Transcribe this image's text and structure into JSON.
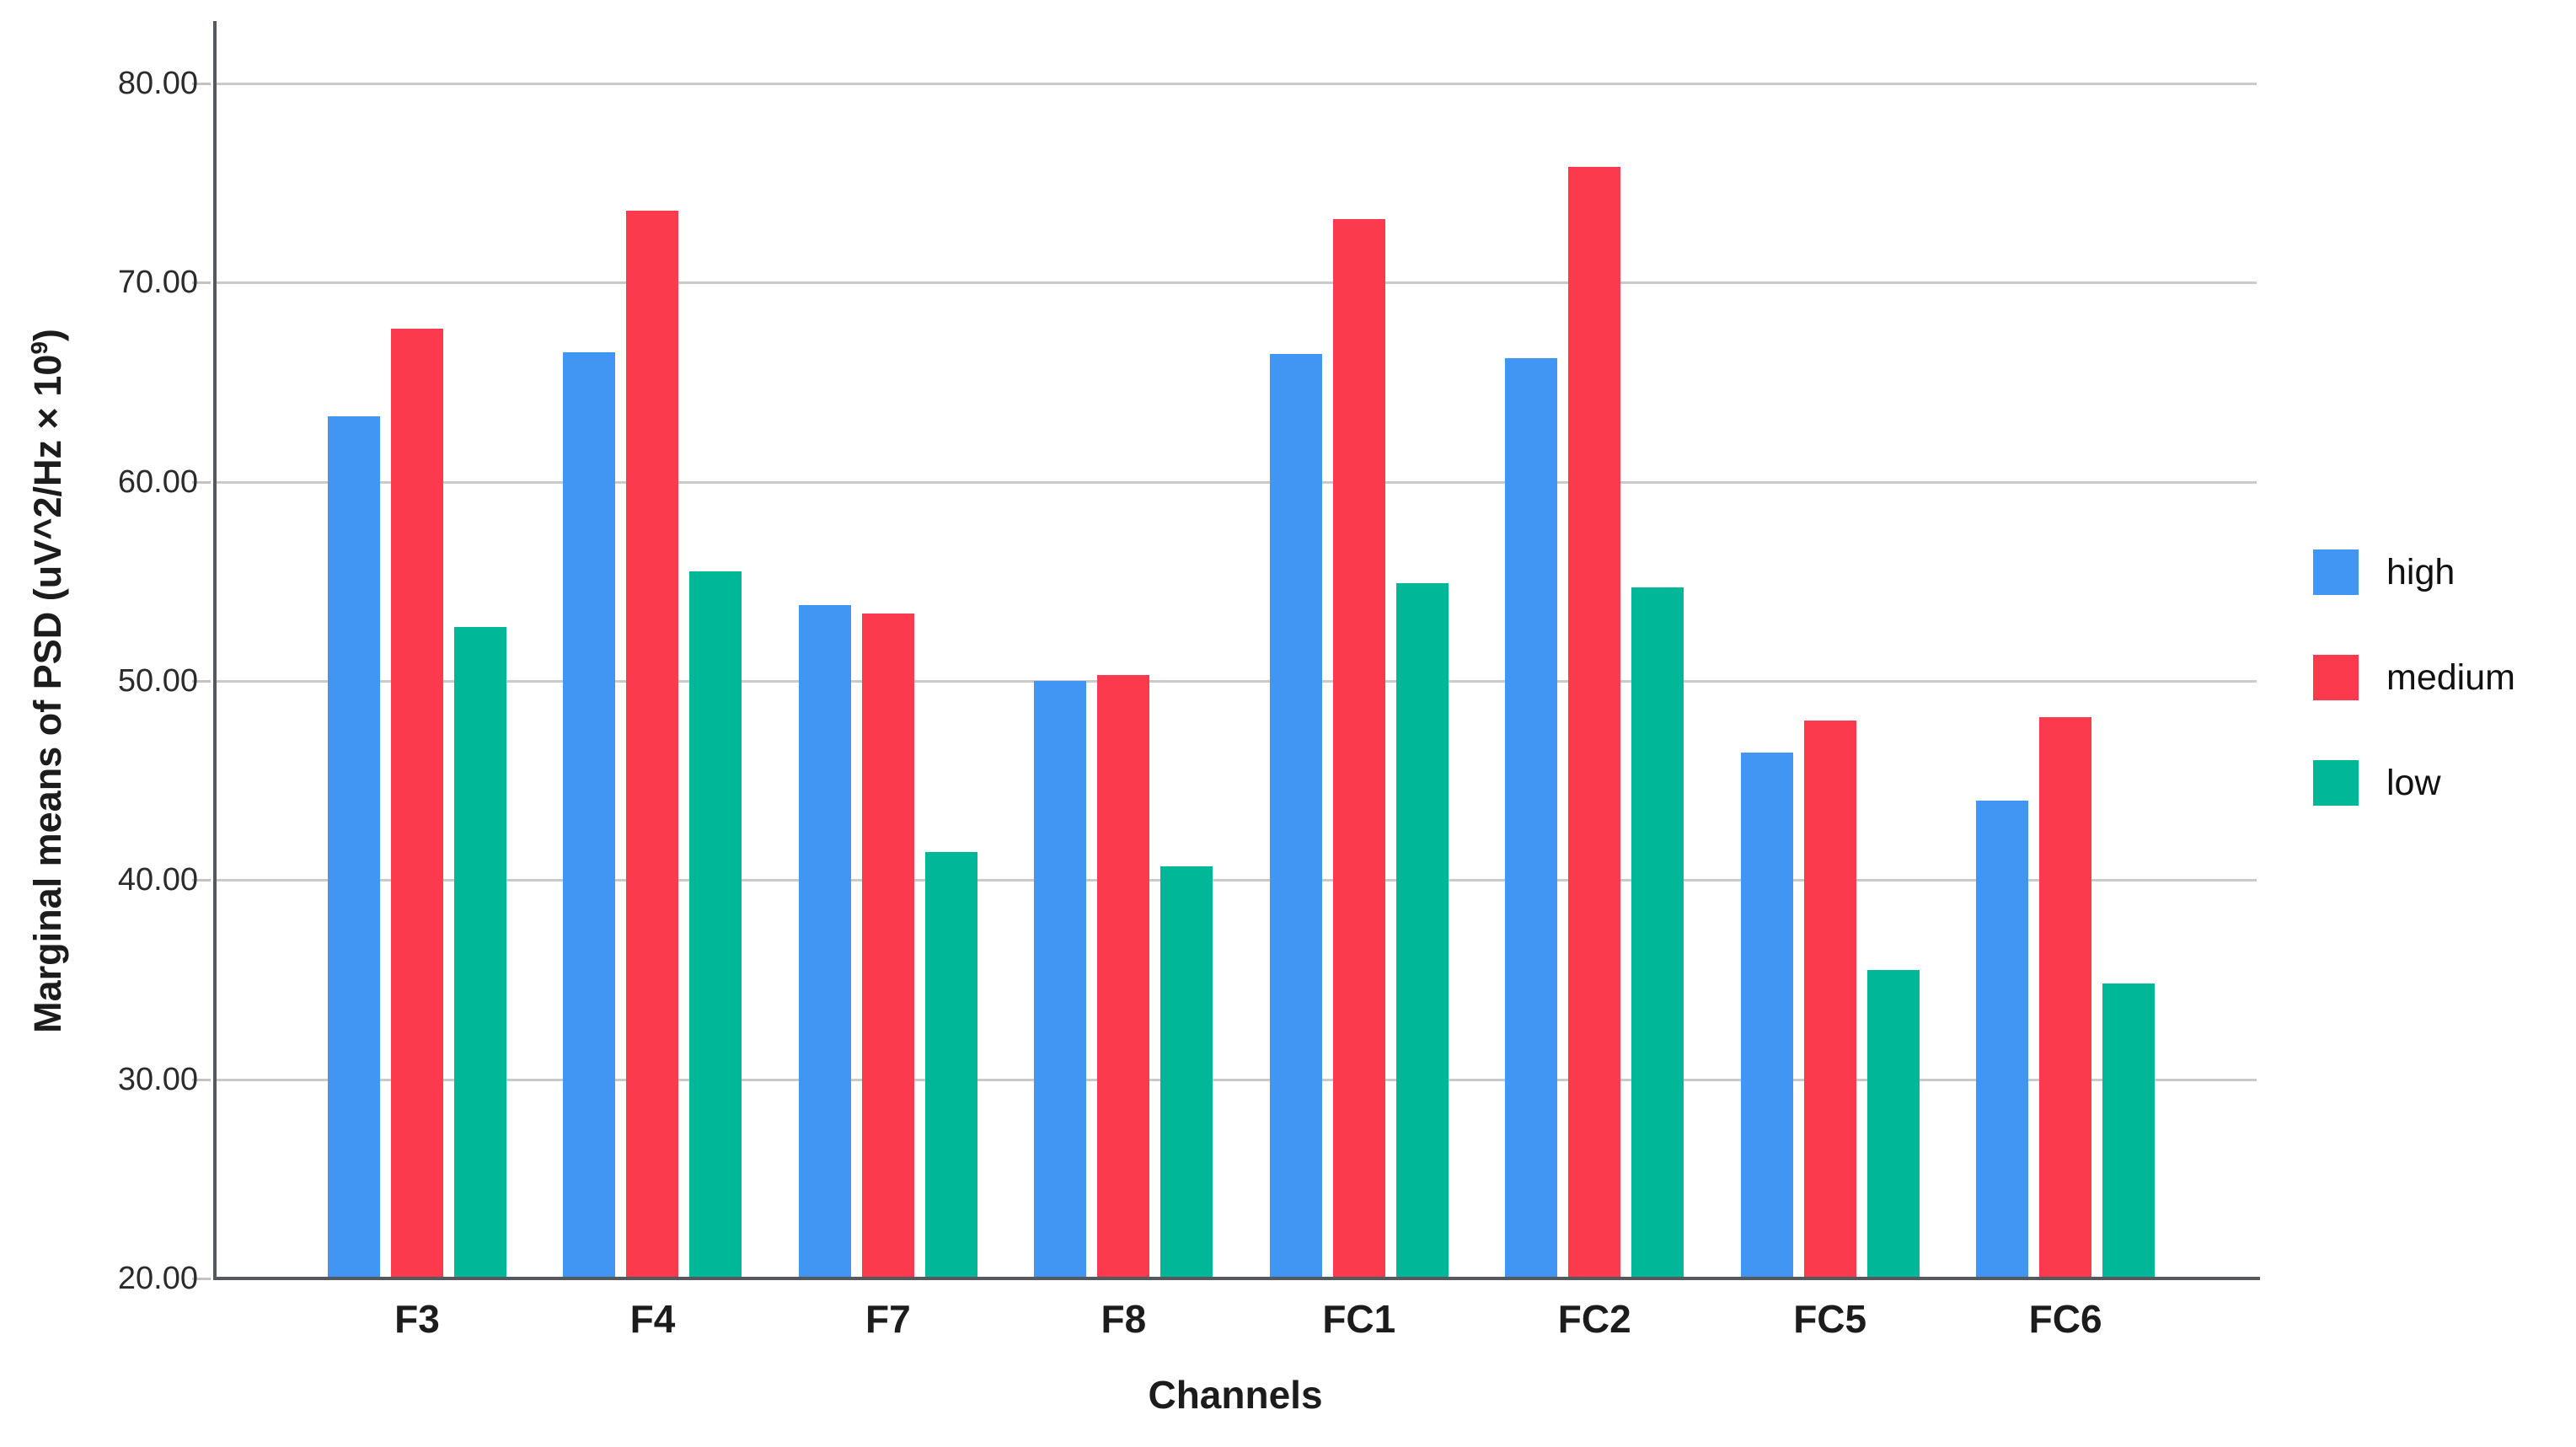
{
  "chart_data": {
    "type": "bar",
    "title": "",
    "categories": [
      "F3",
      "F4",
      "F7",
      "F8",
      "FC1",
      "FC2",
      "FC5",
      "FC6"
    ],
    "series": [
      {
        "name": "high",
        "color": "#4196f3",
        "values": [
          63.3,
          66.5,
          53.8,
          50.0,
          66.4,
          66.2,
          46.4,
          44.0
        ]
      },
      {
        "name": "medium",
        "color": "#fb3a4d",
        "values": [
          67.7,
          73.6,
          53.4,
          50.3,
          73.2,
          75.8,
          48.0,
          48.2
        ]
      },
      {
        "name": "low",
        "color": "#00b797",
        "values": [
          52.7,
          55.5,
          41.4,
          40.7,
          54.9,
          54.7,
          35.5,
          34.8
        ]
      }
    ],
    "xlabel": "Channels",
    "ylabel": "Marginal means of PSD (uV^2/Hz × 10⁹)",
    "ylabel_parts": {
      "prefix": "Marginal means of PSD (uV^2/Hz × 10",
      "sup": "9",
      "suffix": ")"
    },
    "ylim": [
      20,
      80
    ],
    "yticks": [
      20,
      30,
      40,
      50,
      60,
      70,
      80
    ],
    "ytick_labels": [
      "20.00",
      "30.00",
      "40.00",
      "50.00",
      "60.00",
      "70.00",
      "80.00"
    ],
    "grid": true,
    "legend_position": "right",
    "legend_entries": [
      "high",
      "medium",
      "low"
    ]
  },
  "style_colors": {
    "axis": "#55585c",
    "gridline": "#c9cacb",
    "tick_text": "#2b2b2b",
    "label_text": "#1c1c1c",
    "background": "#ffffff"
  }
}
